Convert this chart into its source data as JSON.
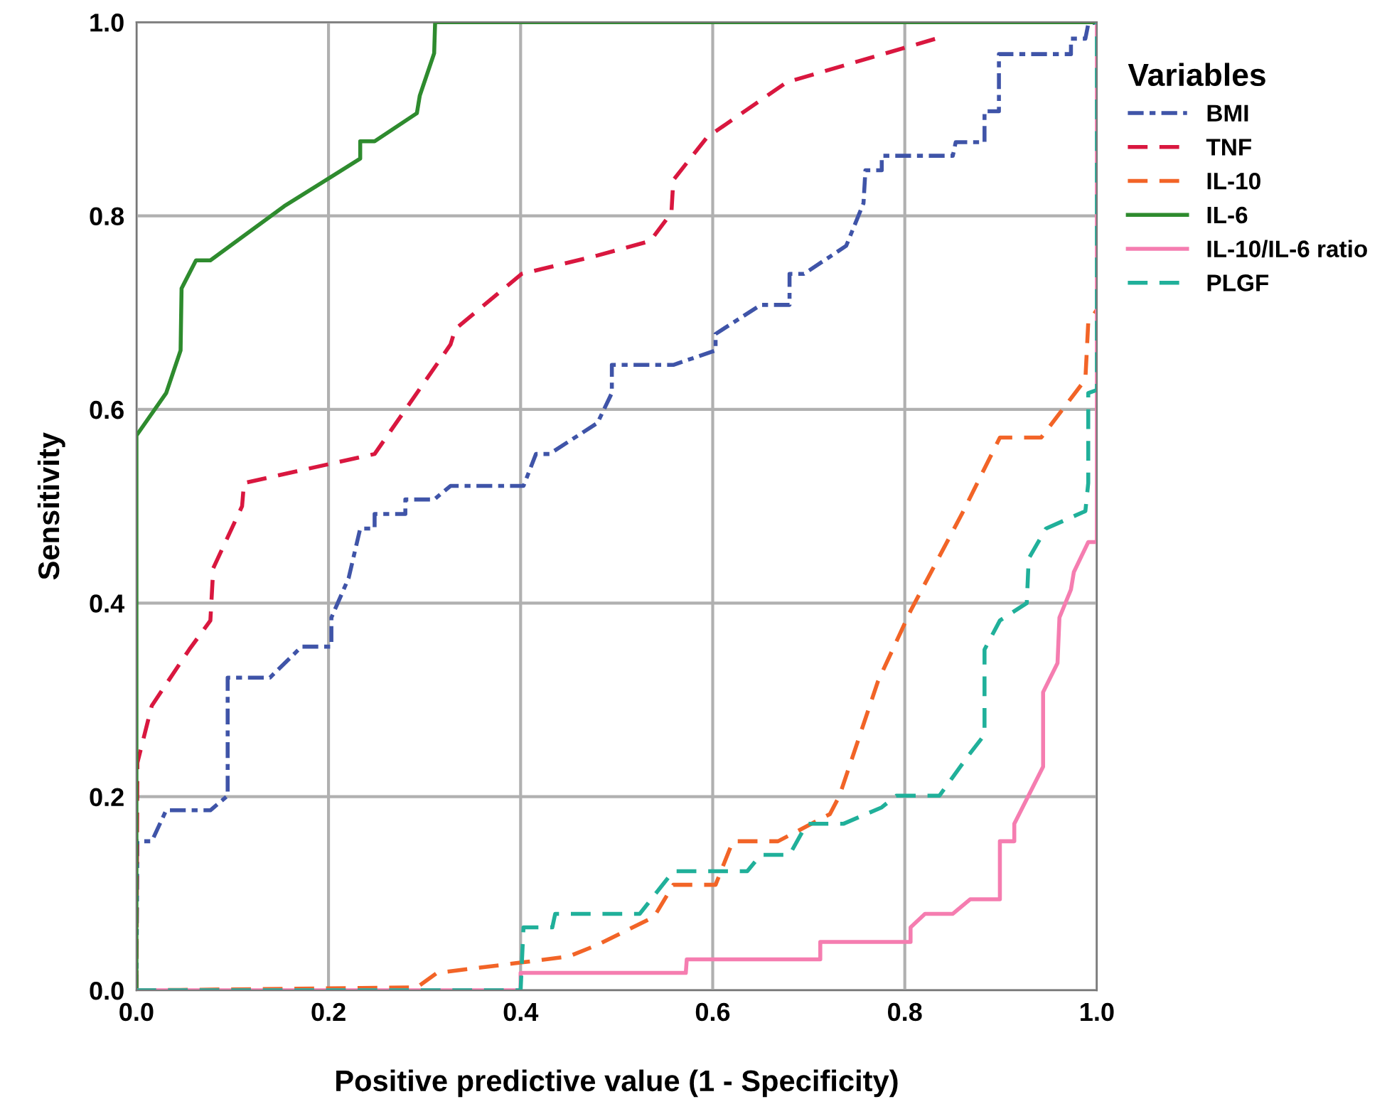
{
  "chart_data": {
    "type": "line",
    "xlabel": "Positive predictive value (1 - Specificity)",
    "ylabel": "Sensitivity",
    "legend_title": "Variables",
    "legend": "right",
    "grid": true,
    "xlim": [
      0,
      1
    ],
    "ylim": [
      0,
      1
    ],
    "xticks": [
      {
        "value": 0,
        "label": "0.0"
      },
      {
        "value": 0.2,
        "label": "0.2"
      },
      {
        "value": 0.4,
        "label": "0.4"
      },
      {
        "value": 0.6,
        "label": "0.6"
      },
      {
        "value": 0.8,
        "label": "0.8"
      },
      {
        "value": 1,
        "label": "1.0"
      }
    ],
    "yticks": [
      {
        "value": 0,
        "label": "0.0"
      },
      {
        "value": 0.2,
        "label": "0.2"
      },
      {
        "value": 0.4,
        "label": "0.4"
      },
      {
        "value": 0.6,
        "label": "0.6"
      },
      {
        "value": 0.8,
        "label": "0.8"
      },
      {
        "value": 1,
        "label": "1.0"
      }
    ],
    "series": [
      {
        "name": "BMI",
        "color": "#3f54a8",
        "line_style": "dashdot",
        "x": [
          0,
          0.001,
          0.016,
          0.031,
          0.077,
          0.095,
          0.095,
          0.139,
          0.172,
          0.203,
          0.203,
          0.221,
          0.233,
          0.248,
          0.248,
          0.28,
          0.28,
          0.31,
          0.327,
          0.403,
          0.416,
          0.43,
          0.48,
          0.495,
          0.495,
          0.559,
          0.603,
          0.603,
          0.65,
          0.68,
          0.68,
          0.695,
          0.739,
          0.757,
          0.759,
          0.776,
          0.776,
          0.85,
          0.853,
          0.883,
          0.883,
          0.898,
          0.898,
          0.973,
          0.973,
          0.988,
          0.991,
          1
        ],
        "values": [
          0,
          0.154,
          0.154,
          0.186,
          0.186,
          0.201,
          0.323,
          0.323,
          0.355,
          0.355,
          0.385,
          0.426,
          0.477,
          0.477,
          0.492,
          0.492,
          0.507,
          0.507,
          0.521,
          0.521,
          0.554,
          0.554,
          0.586,
          0.617,
          0.646,
          0.646,
          0.661,
          0.678,
          0.708,
          0.708,
          0.74,
          0.74,
          0.769,
          0.813,
          0.847,
          0.847,
          0.862,
          0.862,
          0.876,
          0.876,
          0.908,
          0.908,
          0.967,
          0.967,
          0.983,
          0.983,
          0.998,
          1
        ]
      },
      {
        "name": "TNF",
        "color": "#d9173f",
        "line_style": "dashed",
        "x": [
          0,
          0.001,
          0.016,
          0.055,
          0.077,
          0.08,
          0.11,
          0.112,
          0.248,
          0.327,
          0.332,
          0.401,
          0.48,
          0.535,
          0.557,
          0.559,
          0.594,
          0.677,
          0.836
        ],
        "values": [
          0,
          0.235,
          0.294,
          0.352,
          0.382,
          0.436,
          0.5,
          0.524,
          0.554,
          0.667,
          0.683,
          0.74,
          0.759,
          0.774,
          0.803,
          0.837,
          0.881,
          0.938,
          0.984
        ]
      },
      {
        "name": "IL-10",
        "color": "#f26427",
        "line_style": "dashed",
        "x": [
          0,
          0.292,
          0.313,
          0.403,
          0.45,
          0.48,
          0.539,
          0.559,
          0.603,
          0.621,
          0.668,
          0.722,
          0.732,
          0.772,
          0.806,
          0.861,
          0.899,
          0.942,
          0.988,
          0.991,
          1
        ],
        "values": [
          0,
          0.003,
          0.018,
          0.029,
          0.035,
          0.047,
          0.076,
          0.109,
          0.109,
          0.154,
          0.154,
          0.182,
          0.201,
          0.319,
          0.392,
          0.495,
          0.571,
          0.571,
          0.631,
          0.69,
          0.703
        ]
      },
      {
        "name": "IL-6",
        "color": "#2e8b2e",
        "line_style": "solid",
        "x": [
          0,
          0,
          0.031,
          0.046,
          0.047,
          0.062,
          0.077,
          0.154,
          0.233,
          0.233,
          0.248,
          0.292,
          0.295,
          0.31,
          0.311,
          1
        ],
        "values": [
          0,
          0.573,
          0.617,
          0.661,
          0.725,
          0.754,
          0.754,
          0.81,
          0.859,
          0.877,
          0.877,
          0.906,
          0.924,
          0.968,
          1,
          1
        ]
      },
      {
        "name": "IL-10/IL-6 ratio",
        "color": "#f57db0",
        "line_style": "solid",
        "x": [
          0,
          0.4,
          0.4,
          0.572,
          0.573,
          0.712,
          0.712,
          0.806,
          0.806,
          0.821,
          0.85,
          0.868,
          0.899,
          0.899,
          0.914,
          0.914,
          0.944,
          0.944,
          0.959,
          0.961,
          0.973,
          0.976,
          0.991,
          1,
          1
        ],
        "values": [
          0,
          0,
          0.018,
          0.018,
          0.032,
          0.032,
          0.05,
          0.05,
          0.065,
          0.079,
          0.079,
          0.094,
          0.094,
          0.154,
          0.154,
          0.172,
          0.231,
          0.308,
          0.338,
          0.385,
          0.414,
          0.432,
          0.463,
          0.463,
          1
        ]
      },
      {
        "name": "PLGF",
        "color": "#20b09a",
        "line_style": "dashed",
        "x": [
          0,
          0.4,
          0.403,
          0.433,
          0.436,
          0.524,
          0.559,
          0.636,
          0.65,
          0.68,
          0.698,
          0.736,
          0.776,
          0.791,
          0.836,
          0.865,
          0.883,
          0.883,
          0.899,
          0.927,
          0.929,
          0.947,
          0.988,
          0.991,
          0.991,
          1,
          1
        ],
        "values": [
          0,
          0,
          0.065,
          0.065,
          0.079,
          0.079,
          0.123,
          0.123,
          0.14,
          0.14,
          0.172,
          0.172,
          0.189,
          0.201,
          0.201,
          0.241,
          0.264,
          0.352,
          0.382,
          0.4,
          0.446,
          0.477,
          0.495,
          0.524,
          0.617,
          0.62,
          1
        ]
      }
    ]
  }
}
